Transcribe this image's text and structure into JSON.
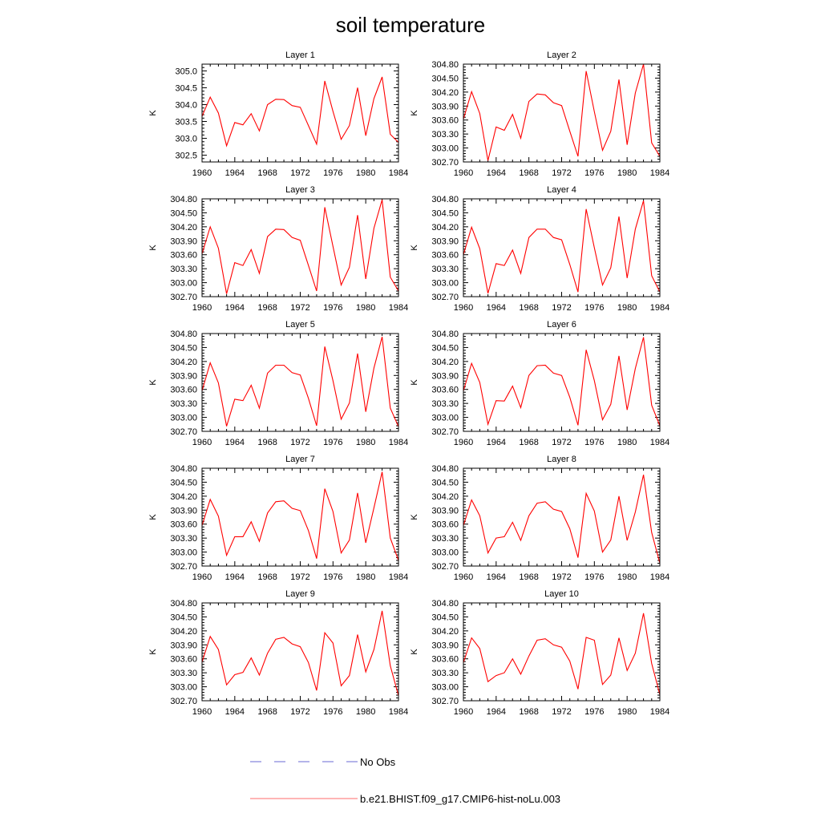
{
  "page": {
    "title": "soil temperature"
  },
  "legend": [
    {
      "label": "No Obs",
      "color": "#6a6ad6",
      "dash": "dashed"
    },
    {
      "label": "b.e21.BHIST.f09_g17.CMIP6-hist-noLu.003",
      "color": "#ff6b6b",
      "dash": "solid"
    }
  ],
  "chart_data": [
    {
      "type": "line",
      "title": "Layer 1",
      "xlabel": "",
      "ylabel": "K",
      "xlim": [
        1960,
        1984
      ],
      "ylim": [
        302.3,
        305.2
      ],
      "xticks": [
        1960,
        1964,
        1968,
        1972,
        1976,
        1980,
        1984
      ],
      "yticks": [
        "302.5",
        "303.0",
        "303.5",
        "304.0",
        "304.5",
        "305.0"
      ],
      "line_color": "#ff0000",
      "x": [
        1960,
        1961,
        1962,
        1963,
        1964,
        1965,
        1966,
        1967,
        1968,
        1969,
        1970,
        1971,
        1972,
        1973,
        1974,
        1975,
        1976,
        1977,
        1978,
        1979,
        1980,
        1981,
        1982,
        1983,
        1984
      ],
      "values": [
        303.65,
        304.22,
        303.75,
        302.78,
        303.47,
        303.4,
        303.73,
        303.22,
        304.0,
        304.16,
        304.15,
        303.97,
        303.92,
        303.38,
        302.83,
        304.7,
        303.8,
        302.97,
        303.38,
        304.5,
        303.08,
        304.18,
        304.82,
        303.12,
        302.88
      ]
    },
    {
      "type": "line",
      "title": "Layer 2",
      "xlabel": "",
      "ylabel": "K",
      "xlim": [
        1960,
        1984
      ],
      "ylim": [
        302.7,
        304.8
      ],
      "xticks": [
        1960,
        1964,
        1968,
        1972,
        1976,
        1980,
        1984
      ],
      "yticks": [
        "302.70",
        "303.00",
        "303.30",
        "303.60",
        "303.90",
        "304.20",
        "304.50",
        "304.80"
      ],
      "line_color": "#ff0000",
      "x": [
        1960,
        1961,
        1962,
        1963,
        1964,
        1965,
        1966,
        1967,
        1968,
        1969,
        1970,
        1971,
        1972,
        1973,
        1974,
        1975,
        1976,
        1977,
        1978,
        1979,
        1980,
        1981,
        1982,
        1983,
        1984
      ],
      "values": [
        303.62,
        304.21,
        303.74,
        302.73,
        303.45,
        303.38,
        303.72,
        303.21,
        304.0,
        304.16,
        304.14,
        303.97,
        303.91,
        303.36,
        302.82,
        304.65,
        303.78,
        302.95,
        303.36,
        304.47,
        303.07,
        304.18,
        304.8,
        303.11,
        302.82
      ]
    },
    {
      "type": "line",
      "title": "Layer 3",
      "xlabel": "",
      "ylabel": "K",
      "xlim": [
        1960,
        1984
      ],
      "ylim": [
        302.7,
        304.8
      ],
      "xticks": [
        1960,
        1964,
        1968,
        1972,
        1976,
        1980,
        1984
      ],
      "yticks": [
        "302.70",
        "303.00",
        "303.30",
        "303.60",
        "303.90",
        "304.20",
        "304.50",
        "304.80"
      ],
      "line_color": "#ff0000",
      "x": [
        1960,
        1961,
        1962,
        1963,
        1964,
        1965,
        1966,
        1967,
        1968,
        1969,
        1970,
        1971,
        1972,
        1973,
        1974,
        1975,
        1976,
        1977,
        1978,
        1979,
        1980,
        1981,
        1982,
        1983,
        1984
      ],
      "values": [
        303.62,
        304.2,
        303.74,
        302.76,
        303.43,
        303.37,
        303.71,
        303.2,
        303.99,
        304.15,
        304.14,
        303.97,
        303.91,
        303.37,
        302.82,
        304.62,
        303.78,
        302.95,
        303.33,
        304.45,
        303.08,
        304.17,
        304.78,
        303.12,
        302.82
      ]
    },
    {
      "type": "line",
      "title": "Layer 4",
      "xlabel": "",
      "ylabel": "K",
      "xlim": [
        1960,
        1984
      ],
      "ylim": [
        302.7,
        304.8
      ],
      "xticks": [
        1960,
        1964,
        1968,
        1972,
        1976,
        1980,
        1984
      ],
      "yticks": [
        "302.70",
        "303.00",
        "303.30",
        "303.60",
        "303.90",
        "304.20",
        "304.50",
        "304.80"
      ],
      "line_color": "#ff0000",
      "x": [
        1960,
        1961,
        1962,
        1963,
        1964,
        1965,
        1966,
        1967,
        1968,
        1969,
        1970,
        1971,
        1972,
        1973,
        1974,
        1975,
        1976,
        1977,
        1978,
        1979,
        1980,
        1981,
        1982,
        1983,
        1984
      ],
      "values": [
        303.6,
        304.19,
        303.73,
        302.77,
        303.41,
        303.37,
        303.7,
        303.2,
        303.97,
        304.15,
        304.15,
        303.97,
        303.92,
        303.39,
        302.8,
        304.58,
        303.75,
        302.95,
        303.32,
        304.42,
        303.1,
        304.15,
        304.76,
        303.15,
        302.8
      ]
    },
    {
      "type": "line",
      "title": "Layer 5",
      "xlabel": "",
      "ylabel": "K",
      "xlim": [
        1960,
        1984
      ],
      "ylim": [
        302.7,
        304.8
      ],
      "xticks": [
        1960,
        1964,
        1968,
        1972,
        1976,
        1980,
        1984
      ],
      "yticks": [
        "302.70",
        "303.00",
        "303.30",
        "303.60",
        "303.90",
        "304.20",
        "304.50",
        "304.80"
      ],
      "line_color": "#ff0000",
      "x": [
        1960,
        1961,
        1962,
        1963,
        1964,
        1965,
        1966,
        1967,
        1968,
        1969,
        1970,
        1971,
        1972,
        1973,
        1974,
        1975,
        1976,
        1977,
        1978,
        1979,
        1980,
        1981,
        1982,
        1983,
        1984
      ],
      "values": [
        303.57,
        304.17,
        303.74,
        302.81,
        303.39,
        303.36,
        303.69,
        303.2,
        303.95,
        304.12,
        304.12,
        303.96,
        303.91,
        303.41,
        302.82,
        304.52,
        303.79,
        302.96,
        303.31,
        304.37,
        303.12,
        304.06,
        304.73,
        303.2,
        302.8
      ]
    },
    {
      "type": "line",
      "title": "Layer 6",
      "xlabel": "",
      "ylabel": "K",
      "xlim": [
        1960,
        1984
      ],
      "ylim": [
        302.7,
        304.8
      ],
      "xticks": [
        1960,
        1964,
        1968,
        1972,
        1976,
        1980,
        1984
      ],
      "yticks": [
        "302.70",
        "303.00",
        "303.30",
        "303.60",
        "303.90",
        "304.20",
        "304.50",
        "304.80"
      ],
      "line_color": "#ff0000",
      "x": [
        1960,
        1961,
        1962,
        1963,
        1964,
        1965,
        1966,
        1967,
        1968,
        1969,
        1970,
        1971,
        1972,
        1973,
        1974,
        1975,
        1976,
        1977,
        1978,
        1979,
        1980,
        1981,
        1982,
        1983,
        1984
      ],
      "values": [
        303.57,
        304.16,
        303.75,
        302.85,
        303.36,
        303.35,
        303.67,
        303.21,
        303.9,
        304.11,
        304.12,
        303.95,
        303.9,
        303.43,
        302.83,
        304.45,
        303.79,
        302.95,
        303.28,
        304.32,
        303.16,
        304.05,
        304.72,
        303.26,
        302.82
      ]
    },
    {
      "type": "line",
      "title": "Layer 7",
      "xlabel": "",
      "ylabel": "K",
      "xlim": [
        1960,
        1984
      ],
      "ylim": [
        302.7,
        304.8
      ],
      "xticks": [
        1960,
        1964,
        1968,
        1972,
        1976,
        1980,
        1984
      ],
      "yticks": [
        "302.70",
        "303.00",
        "303.30",
        "303.60",
        "303.90",
        "304.20",
        "304.50",
        "304.80"
      ],
      "line_color": "#ff0000",
      "x": [
        1960,
        1961,
        1962,
        1963,
        1964,
        1965,
        1966,
        1967,
        1968,
        1969,
        1970,
        1971,
        1972,
        1973,
        1974,
        1975,
        1976,
        1977,
        1978,
        1979,
        1980,
        1981,
        1982,
        1983,
        1984
      ],
      "values": [
        303.57,
        304.13,
        303.77,
        302.93,
        303.33,
        303.33,
        303.65,
        303.23,
        303.84,
        304.08,
        304.1,
        303.94,
        303.89,
        303.46,
        302.86,
        304.36,
        303.87,
        302.98,
        303.26,
        304.27,
        303.2,
        303.95,
        304.72,
        303.3,
        302.82
      ]
    },
    {
      "type": "line",
      "title": "Layer 8",
      "xlabel": "",
      "ylabel": "K",
      "xlim": [
        1960,
        1984
      ],
      "ylim": [
        302.7,
        304.8
      ],
      "xticks": [
        1960,
        1964,
        1968,
        1972,
        1976,
        1980,
        1984
      ],
      "yticks": [
        "302.70",
        "303.00",
        "303.30",
        "303.60",
        "303.90",
        "304.20",
        "304.50",
        "304.80"
      ],
      "line_color": "#ff0000",
      "x": [
        1960,
        1961,
        1962,
        1963,
        1964,
        1965,
        1966,
        1967,
        1968,
        1969,
        1970,
        1971,
        1972,
        1973,
        1974,
        1975,
        1976,
        1977,
        1978,
        1979,
        1980,
        1981,
        1982,
        1983,
        1984
      ],
      "values": [
        303.57,
        304.12,
        303.78,
        302.98,
        303.3,
        303.33,
        303.64,
        303.25,
        303.78,
        304.05,
        304.08,
        303.92,
        303.87,
        303.5,
        302.88,
        304.26,
        303.88,
        303.0,
        303.26,
        304.2,
        303.25,
        303.86,
        304.66,
        303.42,
        302.76
      ]
    },
    {
      "type": "line",
      "title": "Layer 9",
      "xlabel": "",
      "ylabel": "K",
      "xlim": [
        1960,
        1984
      ],
      "ylim": [
        302.7,
        304.8
      ],
      "xticks": [
        1960,
        1964,
        1968,
        1972,
        1976,
        1980,
        1984
      ],
      "yticks": [
        "302.70",
        "303.00",
        "303.30",
        "303.60",
        "303.90",
        "304.20",
        "304.50",
        "304.80"
      ],
      "line_color": "#ff0000",
      "x": [
        1960,
        1961,
        1962,
        1963,
        1964,
        1965,
        1966,
        1967,
        1968,
        1969,
        1970,
        1971,
        1972,
        1973,
        1974,
        1975,
        1976,
        1977,
        1978,
        1979,
        1980,
        1981,
        1982,
        1983,
        1984
      ],
      "values": [
        303.53,
        304.08,
        303.8,
        303.04,
        303.26,
        303.31,
        303.62,
        303.25,
        303.72,
        304.02,
        304.06,
        303.92,
        303.86,
        303.52,
        302.92,
        304.16,
        303.94,
        303.02,
        303.24,
        304.12,
        303.32,
        303.8,
        304.63,
        303.45,
        302.81
      ]
    },
    {
      "type": "line",
      "title": "Layer 10",
      "xlabel": "",
      "ylabel": "K",
      "xlim": [
        1960,
        1984
      ],
      "ylim": [
        302.7,
        304.8
      ],
      "xticks": [
        1960,
        1964,
        1968,
        1972,
        1976,
        1980,
        1984
      ],
      "yticks": [
        "302.70",
        "303.00",
        "303.30",
        "303.60",
        "303.90",
        "304.20",
        "304.50",
        "304.80"
      ],
      "line_color": "#ff0000",
      "x": [
        1960,
        1961,
        1962,
        1963,
        1964,
        1965,
        1966,
        1967,
        1968,
        1969,
        1970,
        1971,
        1972,
        1973,
        1974,
        1975,
        1976,
        1977,
        1978,
        1979,
        1980,
        1981,
        1982,
        1983,
        1984
      ],
      "values": [
        303.52,
        304.05,
        303.82,
        303.11,
        303.24,
        303.3,
        303.6,
        303.27,
        303.66,
        304.0,
        304.03,
        303.9,
        303.85,
        303.55,
        302.95,
        304.06,
        304.0,
        303.05,
        303.25,
        304.05,
        303.35,
        303.72,
        304.58,
        303.5,
        302.83
      ]
    }
  ]
}
